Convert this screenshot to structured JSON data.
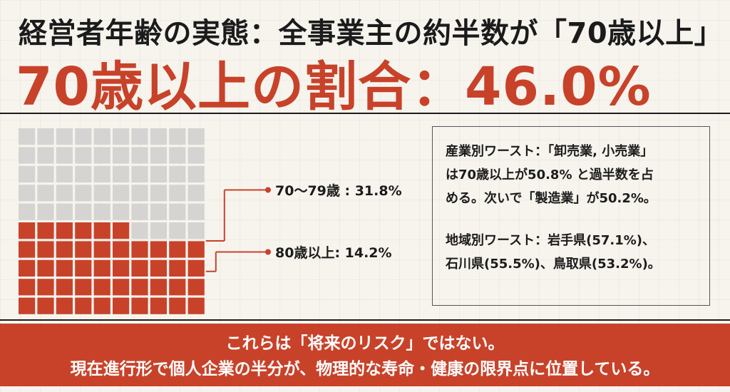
{
  "header": {
    "title": "経営者年齢の実態：全事業主の約半数が「70歳以上」",
    "headline": "70歳以上の割合：46.0%"
  },
  "chart_data": {
    "type": "waffle",
    "grid": {
      "rows": 10,
      "cols": 10
    },
    "total_percent": 46.0,
    "segments": [
      {
        "label": "70〜79歳 : 31.8%",
        "value": 31.8,
        "color": "#c8422a"
      },
      {
        "label": "80歳以上: 14.2%",
        "value": 14.2,
        "color": "#c8422a"
      }
    ],
    "remainder_color": "#d6d4d2"
  },
  "info": {
    "line1": "産業別ワースト：「卸売業, 小売業」",
    "line2": "は70歳以上が50.8% と過半数を占",
    "line3": "める。次いで「製造業」が50.2%。",
    "line4": "地域別ワースト：岩手県(57.1%)、",
    "line5": "石川県(55.5%)、鳥取県(53.2%)。"
  },
  "banner": {
    "line1": "これらは「将来のリスク」ではない。",
    "line2": "現在進行形で個人企業の半分が、物理的な寿命・健康の限界点に位置している。"
  },
  "colors": {
    "accent": "#c8422a",
    "cell_empty": "#d6d4d2",
    "connector": "#c8422a"
  }
}
